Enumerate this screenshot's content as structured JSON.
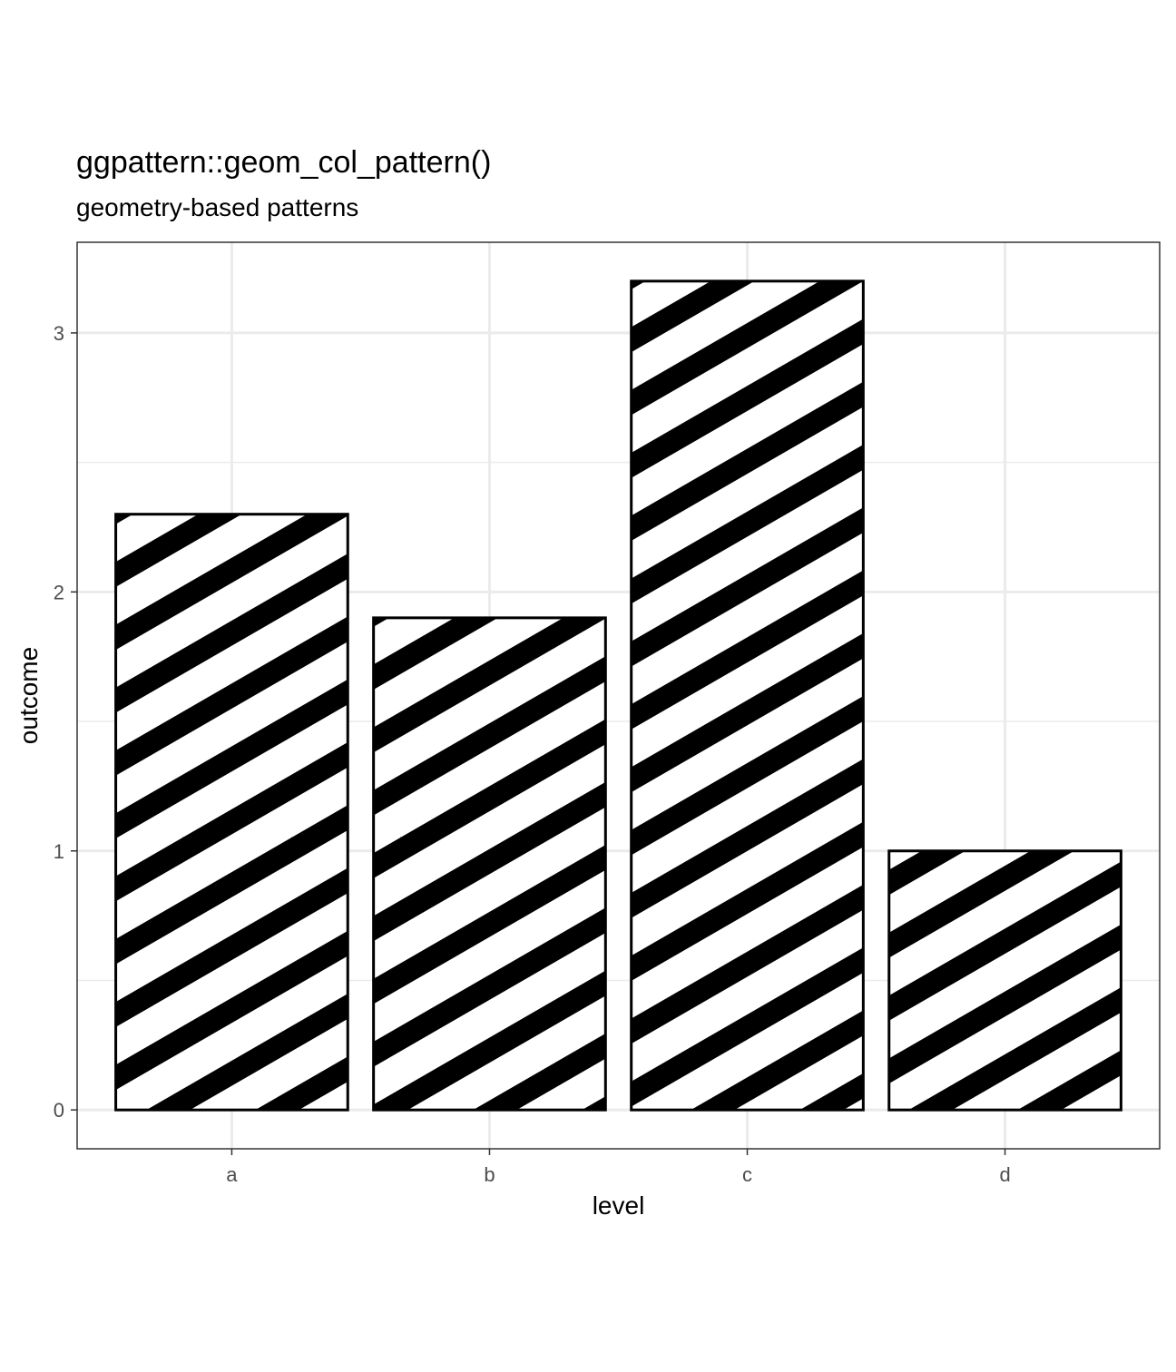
{
  "title": "ggpattern::geom_col_pattern()",
  "subtitle": "geometry-based patterns",
  "chart_data": {
    "type": "bar",
    "categories": [
      "a",
      "b",
      "c",
      "d"
    ],
    "values": [
      2.3,
      1.9,
      3.2,
      1.0
    ],
    "xlabel": "level",
    "ylabel": "outcome",
    "ylim": [
      -0.15,
      3.35
    ],
    "yticks": [
      0,
      1,
      2,
      3
    ],
    "grid": true,
    "pattern": "diagonal stripes",
    "colors": {
      "fill": "#ffffff",
      "stripe": "#000000",
      "outline": "#000000",
      "grid": "#ebebeb",
      "panel_border": "#333333",
      "tick_text": "#4d4d4d"
    }
  }
}
